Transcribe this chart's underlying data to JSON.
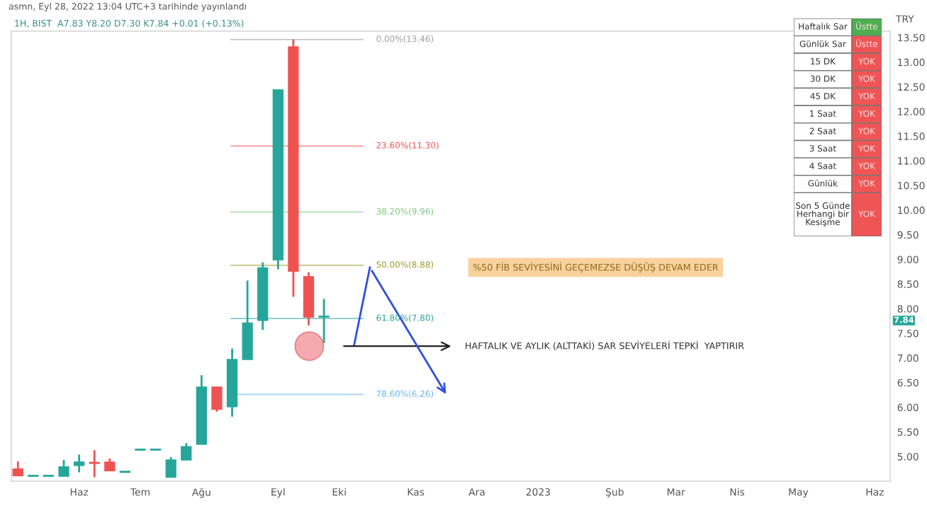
{
  "chart_data": [
    {
      "type": "candlestick",
      "title": "1H, BIST  A7.83 Y8.20 D7.30 K7.84 +0.01 (+0.13%)",
      "subtitle": "asmn, Eyl 28, 2022 13:04 UTC+3 tarihinde yayınlandı",
      "ylabel": "TRY",
      "x": [
        "2022-05-09",
        "2022-05-16",
        "2022-05-23",
        "2022-05-30",
        "2022-06-06",
        "2022-06-13",
        "2022-06-20",
        "2022-06-27",
        "2022-07-04",
        "2022-07-11",
        "2022-07-18",
        "2022-07-25",
        "2022-08-01",
        "2022-08-08",
        "2022-08-15",
        "2022-08-22",
        "2022-08-29",
        "2022-09-05",
        "2022-09-12",
        "2022-09-19",
        "2022-09-26"
      ],
      "ohlc": [
        [
          4.75,
          4.9,
          4.61,
          4.61
        ],
        [
          4.6,
          4.61,
          4.6,
          4.6
        ],
        [
          4.6,
          4.61,
          4.6,
          4.6
        ],
        [
          4.6,
          4.93,
          4.6,
          4.79
        ],
        [
          4.82,
          5.04,
          4.68,
          4.89
        ],
        [
          4.87,
          5.13,
          4.58,
          4.86
        ],
        [
          4.89,
          4.96,
          4.71,
          4.71
        ],
        [
          4.68,
          4.69,
          4.68,
          4.68
        ],
        [
          5.13,
          5.14,
          5.13,
          5.13
        ],
        [
          5.13,
          5.14,
          5.13,
          5.13
        ],
        [
          4.58,
          4.99,
          4.58,
          4.93
        ],
        [
          4.93,
          5.27,
          4.93,
          5.2
        ],
        [
          5.25,
          6.65,
          5.25,
          6.41
        ],
        [
          6.41,
          6.41,
          5.91,
          5.96
        ],
        [
          6.01,
          7.19,
          5.81,
          6.97
        ],
        [
          6.97,
          8.57,
          6.97,
          7.71
        ],
        [
          7.76,
          8.94,
          7.57,
          8.83
        ],
        [
          8.99,
          12.44,
          8.8,
          12.44
        ],
        [
          13.31,
          13.46,
          8.24,
          8.76
        ],
        [
          8.65,
          8.74,
          7.66,
          7.83
        ],
        [
          7.83,
          8.2,
          7.3,
          7.84
        ]
      ],
      "colors": [
        "#ef5350",
        "#26a69a",
        "#26a69a",
        "#26a69a",
        "#26a69a",
        "#ef5350",
        "#ef5350",
        "#26a69a",
        "#26a69a",
        "#26a69a",
        "#26a69a",
        "#26a69a",
        "#26a69a",
        "#ef5350",
        "#26a69a",
        "#26a69a",
        "#26a69a",
        "#26a69a",
        "#ef5350",
        "#ef5350",
        "#26a69a"
      ],
      "xlim": [
        "2022-05-06",
        "2023-06-12"
      ],
      "xticks": [
        {
          "value": "2022-06-06",
          "label": "Haz"
        },
        {
          "value": "2022-07-04",
          "label": "Tem"
        },
        {
          "value": "2022-08-01",
          "label": "Ağu"
        },
        {
          "value": "2022-09-05",
          "label": "Eyl"
        },
        {
          "value": "2022-10-03",
          "label": "Eki"
        },
        {
          "value": "2022-11-07",
          "label": "Kas"
        },
        {
          "value": "2022-12-05",
          "label": "Ara"
        },
        {
          "value": "2023-01-02",
          "label": "2023"
        },
        {
          "value": "2023-02-06",
          "label": "Şub"
        },
        {
          "value": "2023-03-06",
          "label": "Mar"
        },
        {
          "value": "2023-04-03",
          "label": "Nis"
        },
        {
          "value": "2023-05-01",
          "label": "May"
        },
        {
          "value": "2023-06-05",
          "label": "Haz"
        }
      ],
      "ylim": [
        4.5,
        13.63
      ],
      "yticks": [
        {
          "value": 5,
          "label": "5.00"
        },
        {
          "value": 5.5,
          "label": "5.50"
        },
        {
          "value": 6,
          "label": "6.00"
        },
        {
          "value": 6.5,
          "label": "6.50"
        },
        {
          "value": 7,
          "label": "7.00"
        },
        {
          "value": 7.5,
          "label": "7.50"
        },
        {
          "value": 8,
          "label": "8.00"
        },
        {
          "value": 8.5,
          "label": "8.50"
        },
        {
          "value": 9,
          "label": "9.00"
        },
        {
          "value": 9.5,
          "label": "9.50"
        },
        {
          "value": 10,
          "label": "10.00"
        },
        {
          "value": 10.5,
          "label": "10.50"
        },
        {
          "value": 11,
          "label": "11.00"
        },
        {
          "value": 11.5,
          "label": "11.50"
        },
        {
          "value": 12,
          "label": "12.00"
        },
        {
          "value": 12.5,
          "label": "12.50"
        },
        {
          "value": 13,
          "label": "13.00"
        },
        {
          "value": 13.5,
          "label": "13.50"
        }
      ],
      "ref_lines": [
        {
          "axis": "y",
          "value": 13.46,
          "label": "0.00%(13.46)",
          "color": "#9e9e9e"
        },
        {
          "axis": "y",
          "value": 11.3,
          "label": "23.60%(11.30)",
          "color": "#ef5350"
        },
        {
          "axis": "y",
          "value": 9.96,
          "label": "38.20%(9.96)",
          "color": "#81c784"
        },
        {
          "axis": "y",
          "value": 8.88,
          "label": "50.00%(8.88)",
          "color": "#a09a2c"
        },
        {
          "axis": "y",
          "value": 7.8,
          "label": "61.80%(7.80)",
          "color": "#26a69a"
        },
        {
          "axis": "y",
          "value": 6.26,
          "label": "78.60%(6.26)",
          "color": "#64b5f6"
        }
      ],
      "annotations": [
        "%50 FİB SEVİYESİNİ GEÇEMEZSE DÜŞÜŞ DEVAM EDER",
        "HAFTALIK VE AYLIK (ALTTAKİ) SAR SEVİYELERİ TEPKİ  YAPTIRIR",
        "7.84",
        "Haftalık Sar",
        "Üstte",
        "Günlük Sar",
        "Üstte",
        "15 DK",
        "YOK",
        "30 DK",
        "YOK",
        "45 DK",
        "YOK",
        "1 Saat",
        "YOK",
        "2 Saat",
        "YOK",
        "3 Saat",
        "YOK",
        "4 Saat",
        "YOK",
        "Günlük",
        "YOK",
        "Son 5 Günde\nHerhangi bir\nKesişme",
        "YOK"
      ],
      "grid": false
    }
  ]
}
